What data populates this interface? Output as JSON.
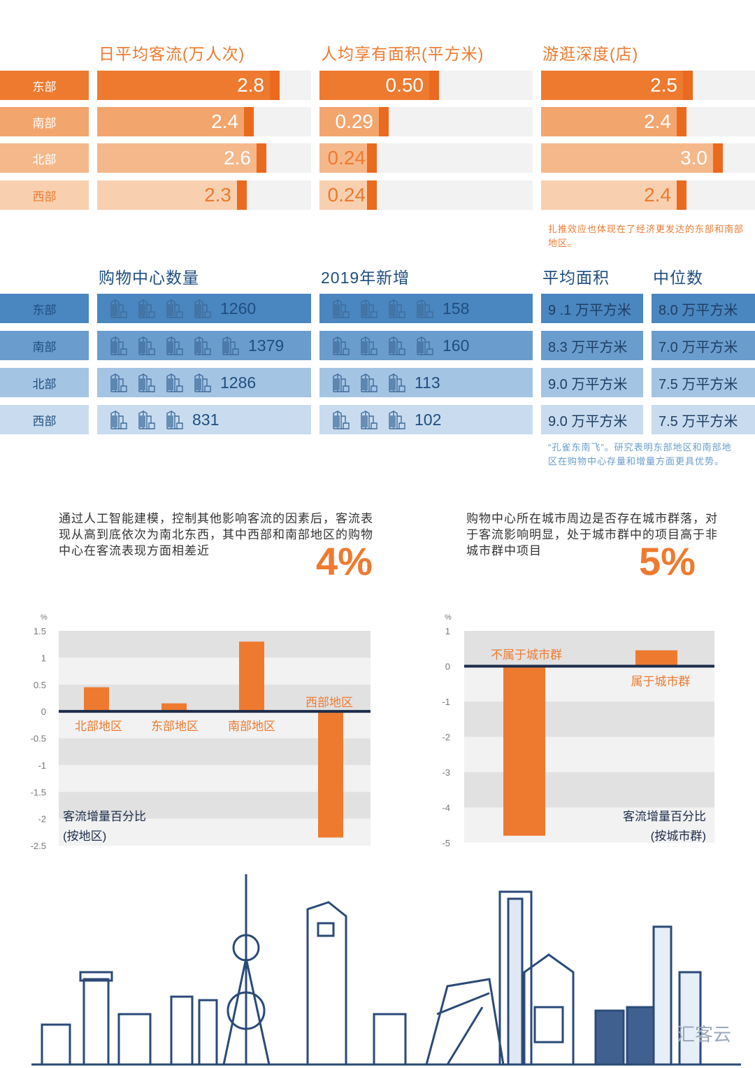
{
  "regions": [
    "东部",
    "南部",
    "北部",
    "西部"
  ],
  "section1": {
    "headers": [
      "日平均客流(万人次)",
      "人均享有面积(平方米)",
      "游逛深度(店)"
    ],
    "columns": [
      {
        "values": [
          "2.8",
          "2.4",
          "2.6",
          "2.3"
        ],
        "nums": [
          2.8,
          2.4,
          2.6,
          2.3
        ]
      },
      {
        "values": [
          "0.50",
          "0.29",
          "0.24",
          "0.24"
        ],
        "nums": [
          0.5,
          0.29,
          0.24,
          0.24
        ]
      },
      {
        "values": [
          "2.5",
          "2.4",
          "3.0",
          "2.4"
        ],
        "nums": [
          2.5,
          2.4,
          3.0,
          2.4
        ]
      }
    ],
    "note": "扎推效应也体现在了经济更发达的东部和南部地区。",
    "colors": [
      "#ee7a30",
      "#f3a56e",
      "#f5b88b",
      "#f8d0b0"
    ],
    "marker_color": "#ea6a1f"
  },
  "section2": {
    "headers": [
      "购物中心数量",
      "2019年新增",
      "平均面积",
      "中位数"
    ],
    "count": {
      "values": [
        "1260",
        "1379",
        "1286",
        "831"
      ],
      "icons": [
        4,
        5,
        4,
        3
      ]
    },
    "new": {
      "values": [
        "158",
        "160",
        "113",
        "102"
      ],
      "icons": [
        4,
        4,
        3,
        3
      ]
    },
    "avg_area": [
      "9 .1 万平方米",
      "8.3 万平方米",
      "9.0 万平方米",
      "9.0 万平方米"
    ],
    "median": [
      "8.0 万平方米",
      "7.0 万平方米",
      "7.5 万平方米",
      "7.5 万平方米"
    ],
    "icon": "shopping-mall-building-icon",
    "note": "“孔雀东南飞”。研究表明东部地区和南部地区在购物中心存量和增量方面更具优势。",
    "colors": [
      "#4a86bf",
      "#6a9dcd",
      "#a4c4e3",
      "#c9dcef"
    ]
  },
  "insight_left": {
    "text": "通过人工智能建模，控制其他影响客流的因素后，客流表现从高到底依次为南北东西，其中西部和南部地区的购物中心在客流表现方面相差近",
    "highlight": "4%"
  },
  "insight_right": {
    "text": "购物中心所在城市周边是否存在城市群落，对于客流影响明显，处于城市群中的项目高于非城市群中项目",
    "highlight": "5%"
  },
  "chart_data": [
    {
      "type": "bar",
      "unit": "%",
      "categories": [
        "北部地区",
        "东部地区",
        "南部地区",
        "西部地区"
      ],
      "values": [
        0.45,
        0.15,
        1.3,
        -2.35
      ],
      "ylim": [
        -2.5,
        1.5
      ],
      "yticks": [
        "1.5",
        "1",
        "0.5",
        "0",
        "-0.5",
        "-1",
        "-1.5",
        "-2",
        "-2.5"
      ],
      "title": "客流增量百分比",
      "subtitle": "(按地区)",
      "bar_color": "#ee7a30",
      "grid": "alternating bands"
    },
    {
      "type": "bar",
      "unit": "%",
      "categories": [
        "不属于城市群",
        "属于城市群"
      ],
      "values": [
        -4.8,
        0.45
      ],
      "ylim": [
        -5,
        1
      ],
      "yticks": [
        "1",
        "0",
        "-1",
        "-2",
        "-3",
        "-4",
        "-5"
      ],
      "title": "客流增量百分比",
      "subtitle": "(按城市群)",
      "bar_color": "#ee7a30",
      "grid": "alternating bands"
    }
  ],
  "watermark": "汇客云"
}
